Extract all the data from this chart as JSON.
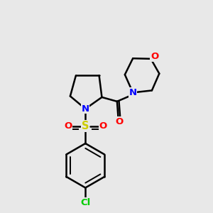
{
  "bg_color": "#e8e8e8",
  "bond_color": "#000000",
  "atom_colors": {
    "N": "#0000ff",
    "O": "#ff0000",
    "S": "#cccc00",
    "Cl": "#00cc00"
  },
  "figsize": [
    3.0,
    3.0
  ],
  "dpi": 100
}
